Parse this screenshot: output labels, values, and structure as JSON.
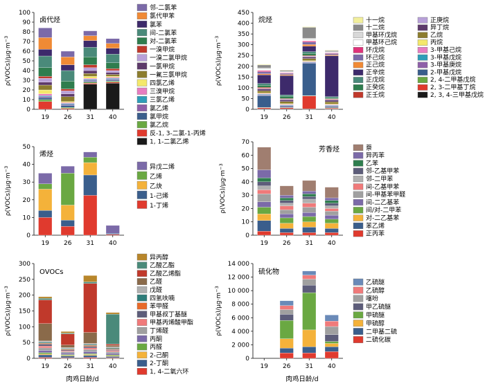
{
  "xlabel": "肉鸡日龄/d",
  "ylabel_prefix": "ρ(VOCs)/μg·m",
  "ylabel_exp": "−3",
  "categories": [
    "19",
    "26",
    "31",
    "40"
  ],
  "chart_data": [
    {
      "type": "bar",
      "stacked": true,
      "title": "卤代烃",
      "ylim": [
        0,
        100
      ],
      "yticks": [
        0,
        10,
        20,
        30,
        40,
        50,
        60,
        70,
        80,
        90,
        100
      ],
      "categories": [
        "19",
        "26",
        "31",
        "40"
      ],
      "series": [
        {
          "name": "1, 1-二氯乙烯",
          "color": "#1a1a1a",
          "values": [
            0,
            0,
            26,
            27
          ]
        },
        {
          "name": "反-1, 3-二氯-1-丙烯",
          "color": "#e03a2e",
          "values": [
            8,
            1,
            1,
            1
          ]
        },
        {
          "name": "氯乙烷",
          "color": "#6aa842",
          "values": [
            2,
            1,
            1,
            1
          ]
        },
        {
          "name": "氯甲烷",
          "color": "#3a5e8c",
          "values": [
            2,
            2,
            1,
            1
          ]
        },
        {
          "name": "氯乙烯",
          "color": "#8e5fa8",
          "values": [
            1,
            1,
            1,
            1
          ]
        },
        {
          "name": "三氯乙烯",
          "color": "#2e9db8",
          "values": [
            1,
            1,
            1,
            1
          ]
        },
        {
          "name": "三溴甲烷",
          "color": "#e67dc0",
          "values": [
            2,
            1,
            1,
            1
          ]
        },
        {
          "name": "四氯乙烯",
          "color": "#f4e86a",
          "values": [
            4,
            1,
            2,
            1
          ]
        },
        {
          "name": "一氟三氯甲烷",
          "color": "#8c7d2e",
          "values": [
            5,
            5,
            3,
            2
          ]
        },
        {
          "name": "一氯甲烷",
          "color": "#5d3a6a",
          "values": [
            3,
            3,
            3,
            2
          ]
        },
        {
          "name": "一溴二氯甲烷",
          "color": "#b8a0d8",
          "values": [
            4,
            3,
            3,
            2
          ]
        },
        {
          "name": "一溴甲烷",
          "color": "#c0392b",
          "values": [
            2,
            2,
            3,
            2
          ]
        },
        {
          "name": "对-二氯苯",
          "color": "#2f7d4e",
          "values": [
            9,
            8,
            8,
            6
          ]
        },
        {
          "name": "间-二氯苯",
          "color": "#4a8a7a",
          "values": [
            12,
            11,
            10,
            9
          ]
        },
        {
          "name": "氯苯",
          "color": "#3d2a6b",
          "values": [
            7,
            6,
            7,
            6
          ]
        },
        {
          "name": "氯代甲苯",
          "color": "#f08a35",
          "values": [
            12,
            8,
            5,
            5
          ]
        },
        {
          "name": "邻-二氯苯",
          "color": "#7b6aa8",
          "values": [
            10,
            6,
            5,
            5
          ]
        }
      ]
    },
    {
      "type": "bar",
      "stacked": true,
      "title": "烷烃",
      "ylim": [
        0,
        450
      ],
      "yticks": [
        0,
        50,
        100,
        150,
        200,
        250,
        300,
        350,
        400,
        450
      ],
      "categories": [
        "19",
        "26",
        "31",
        "40"
      ],
      "series": [
        {
          "name": "2, 3, 4-三甲基戊烷",
          "color": "#1a1a1a",
          "values": [
            2,
            2,
            2,
            2
          ]
        },
        {
          "name": "2, 3-二甲基丁烷",
          "color": "#e03a2e",
          "values": [
            5,
            5,
            60,
            4
          ]
        },
        {
          "name": "2, 4-二甲基戊烷",
          "color": "#6aa842",
          "values": [
            2,
            2,
            2,
            2
          ]
        },
        {
          "name": "2-甲基戊烷",
          "color": "#3a5e8c",
          "values": [
            55,
            5,
            150,
            5
          ]
        },
        {
          "name": "3-甲基庚烷",
          "color": "#8e5fa8",
          "values": [
            3,
            3,
            3,
            3
          ]
        },
        {
          "name": "3-甲基戊烷",
          "color": "#2e9db8",
          "values": [
            3,
            3,
            3,
            3
          ]
        },
        {
          "name": "3-甲基己烷",
          "color": "#e67dc0",
          "values": [
            3,
            3,
            3,
            3
          ]
        },
        {
          "name": "丙烷",
          "color": "#f4e86a",
          "values": [
            3,
            3,
            3,
            3
          ]
        },
        {
          "name": "乙烷",
          "color": "#8c7d2e",
          "values": [
            10,
            10,
            10,
            10
          ]
        },
        {
          "name": "异丁烷",
          "color": "#5d3a6a",
          "values": [
            8,
            8,
            8,
            8
          ]
        },
        {
          "name": "正庚烷",
          "color": "#b8a0d8",
          "values": [
            3,
            3,
            3,
            3
          ]
        },
        {
          "name": "正壬烷",
          "color": "#c0392b",
          "values": [
            5,
            3,
            3,
            3
          ]
        },
        {
          "name": "正癸烷",
          "color": "#2f7d4e",
          "values": [
            10,
            10,
            10,
            5
          ]
        },
        {
          "name": "正戊烷",
          "color": "#4a8a7a",
          "values": [
            8,
            7,
            8,
            5
          ]
        },
        {
          "name": "正辛烷",
          "color": "#3d2a6b",
          "values": [
            40,
            90,
            25,
            190
          ]
        },
        {
          "name": "正己烷",
          "color": "#f08a35",
          "values": [
            5,
            4,
            8,
            4
          ]
        },
        {
          "name": "环己烷",
          "color": "#7b6aa8",
          "values": [
            10,
            6,
            12,
            6
          ]
        },
        {
          "name": "环戊烷",
          "color": "#e0327a",
          "values": [
            5,
            3,
            5,
            3
          ]
        },
        {
          "name": "甲基环己烷",
          "color": "#ffffff",
          "values": [
            6,
            3,
            6,
            3
          ]
        },
        {
          "name": "甲基环戊烷",
          "color": "#d8d8d8",
          "values": [
            6,
            3,
            6,
            3
          ]
        },
        {
          "name": "十二烷",
          "color": "#8a8a8a",
          "values": [
            14,
            5,
            51,
            5
          ]
        },
        {
          "name": "十一烷",
          "color": "#f2ef9c",
          "values": [
            3,
            2,
            3,
            2
          ]
        }
      ]
    },
    {
      "type": "bar",
      "stacked": true,
      "title": "烯烃",
      "ylim": [
        0,
        50
      ],
      "yticks": [
        0,
        10,
        20,
        30,
        40,
        50
      ],
      "categories": [
        "19",
        "26",
        "31",
        "40"
      ],
      "series": [
        {
          "name": "1-丁烯",
          "color": "#e03a2e",
          "values": [
            10,
            5,
            22.5,
            0.5
          ]
        },
        {
          "name": "1-己烯",
          "color": "#3a5e8c",
          "values": [
            4,
            3.5,
            11.5,
            0.5
          ]
        },
        {
          "name": "乙炔",
          "color": "#f4b23a",
          "values": [
            12,
            8.5,
            7,
            0
          ]
        },
        {
          "name": "乙烯",
          "color": "#6aa842",
          "values": [
            3,
            18,
            3,
            0
          ]
        },
        {
          "name": "异戊二烯",
          "color": "#7b6aa8",
          "values": [
            6,
            4,
            3,
            4.5
          ]
        }
      ]
    },
    {
      "type": "bar",
      "stacked": true,
      "title": "芳香烃",
      "ylim": [
        0,
        70
      ],
      "yticks": [
        0,
        10,
        20,
        30,
        40,
        50,
        60,
        70
      ],
      "categories": [
        "19",
        "26",
        "31",
        "40"
      ],
      "series": [
        {
          "name": "正丙苯",
          "color": "#e03a2e",
          "values": [
            3,
            2,
            2,
            2
          ]
        },
        {
          "name": "苯乙烯",
          "color": "#3a5e8c",
          "values": [
            8,
            3,
            4,
            3
          ]
        },
        {
          "name": "对-二乙基苯",
          "color": "#f4b23a",
          "values": [
            5,
            4,
            4,
            4
          ]
        },
        {
          "name": "间/对-二甲苯",
          "color": "#6aa842",
          "values": [
            5,
            4,
            4,
            3
          ]
        },
        {
          "name": "间-二乙基苯",
          "color": "#7b6aa8",
          "values": [
            4,
            3,
            3,
            3
          ]
        },
        {
          "name": "间-甲基苯甲醛",
          "color": "#a0a0a0",
          "values": [
            6,
            3,
            4,
            3
          ]
        },
        {
          "name": "间-乙基甲苯",
          "color": "#f07a7a",
          "values": [
            3,
            3,
            3,
            2
          ]
        },
        {
          "name": "邻-二甲苯",
          "color": "#b0b0b0",
          "values": [
            3,
            2,
            3,
            2
          ]
        },
        {
          "name": "邻-乙基甲苯",
          "color": "#5d5d7a",
          "values": [
            3,
            2,
            2,
            2
          ]
        },
        {
          "name": "乙苯",
          "color": "#2f7d4e",
          "values": [
            3,
            2,
            2,
            2
          ]
        },
        {
          "name": "异丙苯",
          "color": "#7b6aa8",
          "values": [
            6,
            2,
            2,
            2
          ]
        },
        {
          "name": "萘",
          "color": "#a07e70",
          "values": [
            17,
            7,
            8,
            8
          ]
        }
      ]
    },
    {
      "type": "bar",
      "stacked": true,
      "title": "OVOCs",
      "ylim": [
        0,
        300
      ],
      "yticks": [
        0,
        50,
        100,
        150,
        200,
        250,
        300
      ],
      "categories": [
        "19",
        "26",
        "31",
        "40"
      ],
      "series": [
        {
          "name": "1, 4-二氧六环",
          "color": "#e03a2e",
          "values": [
            3,
            2,
            3,
            2
          ]
        },
        {
          "name": "2-丁酮",
          "color": "#3a5e8c",
          "values": [
            8,
            5,
            6,
            4
          ]
        },
        {
          "name": "2-己酮",
          "color": "#f4b23a",
          "values": [
            3,
            2,
            3,
            2
          ]
        },
        {
          "name": "丙醛",
          "color": "#6aa842",
          "values": [
            4,
            3,
            3,
            3
          ]
        },
        {
          "name": "丙酮",
          "color": "#7b6aa8",
          "values": [
            7,
            5,
            6,
            5
          ]
        },
        {
          "name": "丁烯醛",
          "color": "#a0a0a0",
          "values": [
            8,
            4,
            7,
            5
          ]
        },
        {
          "name": "甲基丙烯酸甲酯",
          "color": "#f07a7a",
          "values": [
            6,
            3,
            5,
            4
          ]
        },
        {
          "name": "甲基叔丁基醚",
          "color": "#5d5d7a",
          "values": [
            6,
            3,
            5,
            3
          ]
        },
        {
          "name": "苯甲醛",
          "color": "#e86a2a",
          "values": [
            3,
            2,
            3,
            2
          ]
        },
        {
          "name": "四氢呋喃",
          "color": "#2e7d7a",
          "values": [
            3,
            2,
            3,
            3
          ]
        },
        {
          "name": "戊醛",
          "color": "#b0b0b0",
          "values": [
            4,
            3,
            3,
            3
          ]
        },
        {
          "name": "乙醛",
          "color": "#8a6a4a",
          "values": [
            55,
            8,
            35,
            5
          ]
        },
        {
          "name": "乙酸乙烯酯",
          "color": "#c0392b",
          "values": [
            75,
            35,
            155,
            4
          ]
        },
        {
          "name": "乙酸乙酯",
          "color": "#4a8a7a",
          "values": [
            5,
            3,
            5,
            95
          ]
        },
        {
          "name": "异丙醇",
          "color": "#b8862a",
          "values": [
            5,
            5,
            20,
            5
          ]
        }
      ]
    },
    {
      "type": "bar",
      "stacked": true,
      "title": "硫化物",
      "ylim": [
        0,
        14000
      ],
      "yticks": [
        0,
        2000,
        4000,
        6000,
        8000,
        10000,
        12000,
        14000
      ],
      "ytick_labels": [
        "0",
        "2 000",
        "4 000",
        "6 000",
        "8 000",
        "10 000",
        "12 000",
        "14 000"
      ],
      "categories": [
        "19",
        "26",
        "31",
        "40"
      ],
      "series": [
        {
          "name": "二硫化碳",
          "color": "#e03a2e",
          "values": [
            0,
            800,
            800,
            1000
          ]
        },
        {
          "name": "二甲基二硫",
          "color": "#3a5e8c",
          "values": [
            0,
            700,
            900,
            700
          ]
        },
        {
          "name": "甲硫醇",
          "color": "#f4b23a",
          "values": [
            0,
            1400,
            2500,
            500
          ]
        },
        {
          "name": "甲硫醚",
          "color": "#6aa842",
          "values": [
            0,
            2700,
            5500,
            300
          ]
        },
        {
          "name": "甲乙硫醚",
          "color": "#5d5d7a",
          "values": [
            0,
            900,
            1100,
            1000
          ]
        },
        {
          "name": "噻吩",
          "color": "#a0a0a0",
          "values": [
            0,
            700,
            900,
            1200
          ]
        },
        {
          "name": "乙硫醇",
          "color": "#f07a7a",
          "values": [
            0,
            600,
            600,
            800
          ]
        },
        {
          "name": "乙硫醚",
          "color": "#6a8ab8",
          "values": [
            0,
            700,
            600,
            900
          ]
        }
      ]
    }
  ]
}
